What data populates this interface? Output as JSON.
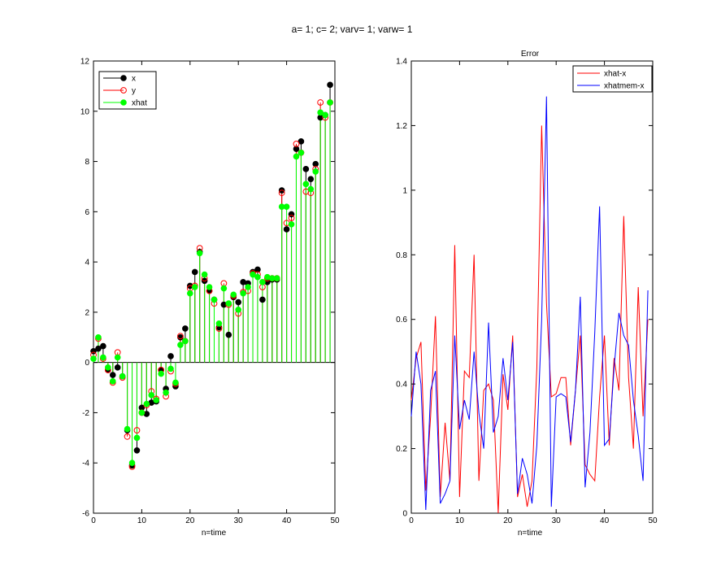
{
  "figure_title": "a= 1; c= 2; varv= 1; varw= 1",
  "chart_data": [
    {
      "type": "stem",
      "title": "",
      "xlabel": "n=time",
      "ylabel": "",
      "xlim": [
        0,
        50
      ],
      "ylim": [
        -6,
        12
      ],
      "xticks": [
        0,
        10,
        20,
        30,
        40,
        50
      ],
      "yticks": [
        -6,
        -4,
        -2,
        0,
        2,
        4,
        6,
        8,
        10,
        12
      ],
      "legend_position": "top-left",
      "x": [
        0,
        1,
        2,
        3,
        4,
        5,
        6,
        7,
        8,
        9,
        10,
        11,
        12,
        13,
        14,
        15,
        16,
        17,
        18,
        19,
        20,
        21,
        22,
        23,
        24,
        25,
        26,
        27,
        28,
        29,
        30,
        31,
        32,
        33,
        34,
        35,
        36,
        37,
        38,
        39,
        40,
        41,
        42,
        43,
        44,
        45,
        46,
        47,
        48,
        49
      ],
      "series": [
        {
          "name": "x",
          "color": "#000000",
          "marker": "filled-circle",
          "values": [
            0.45,
            0.55,
            0.65,
            -0.3,
            -0.5,
            -0.2,
            -0.55,
            -2.7,
            -4.1,
            -3.5,
            -1.8,
            -2.05,
            -1.6,
            -1.55,
            -0.3,
            -1.05,
            0.25,
            -0.95,
            1.0,
            1.35,
            3.05,
            3.6,
            4.4,
            3.25,
            2.85,
            2.5,
            1.4,
            2.3,
            1.1,
            2.6,
            2.4,
            3.2,
            3.15,
            3.6,
            3.7,
            2.5,
            3.2,
            3.3,
            3.3,
            6.85,
            5.3,
            5.9,
            8.5,
            8.8,
            7.7,
            7.3,
            7.9,
            9.75,
            9.85,
            11.05
          ]
        },
        {
          "name": "y",
          "color": "#ff0000",
          "marker": "open-circle",
          "values": [
            0.3,
            0.95,
            0.15,
            -0.3,
            -0.8,
            0.4,
            -0.6,
            -2.95,
            -4.15,
            -2.7,
            -2.0,
            -1.7,
            -1.15,
            -1.45,
            -0.3,
            -1.35,
            -0.35,
            -0.85,
            1.05,
            0.85,
            2.95,
            3.05,
            4.55,
            3.35,
            2.85,
            2.35,
            1.35,
            3.15,
            2.3,
            2.65,
            1.95,
            2.8,
            2.85,
            3.55,
            3.5,
            3.0,
            3.35,
            3.35,
            3.35,
            6.75,
            5.55,
            5.75,
            8.7,
            8.35,
            6.8,
            6.75,
            7.7,
            10.35,
            9.75,
            10.35
          ]
        },
        {
          "name": "xhat",
          "color": "#00ff00",
          "marker": "filled-circle",
          "stem": true,
          "values": [
            0.15,
            1.0,
            0.2,
            -0.2,
            -0.75,
            0.2,
            -0.55,
            -2.65,
            -4.0,
            -3.0,
            -2.0,
            -1.65,
            -1.3,
            -1.5,
            -0.45,
            -1.2,
            -0.25,
            -0.8,
            0.7,
            0.85,
            2.75,
            3.0,
            4.35,
            3.5,
            3.0,
            2.5,
            1.55,
            2.95,
            2.35,
            2.7,
            2.1,
            2.75,
            3.0,
            3.5,
            3.4,
            3.2,
            3.4,
            3.35,
            3.35,
            6.2,
            6.2,
            5.5,
            8.2,
            8.35,
            7.1,
            6.9,
            7.6,
            9.95,
            9.85,
            10.35
          ]
        }
      ]
    },
    {
      "type": "line",
      "title": "Error",
      "xlabel": "n=time",
      "ylabel": "",
      "xlim": [
        0,
        50
      ],
      "ylim": [
        0,
        1.4
      ],
      "xticks": [
        0,
        10,
        20,
        30,
        40,
        50
      ],
      "yticks": [
        0,
        0.2,
        0.4,
        0.6,
        0.8,
        1.0,
        1.2,
        1.4
      ],
      "ytick_labels": [
        "0",
        "0.2",
        "0.4",
        "0.6",
        "0.8",
        "1",
        "1.2",
        "1.4"
      ],
      "legend_position": "top-right",
      "x": [
        0,
        1,
        2,
        3,
        4,
        5,
        6,
        7,
        8,
        9,
        10,
        11,
        12,
        13,
        14,
        15,
        16,
        17,
        18,
        19,
        20,
        21,
        22,
        23,
        24,
        25,
        26,
        27,
        28,
        29,
        30,
        31,
        32,
        33,
        34,
        35,
        36,
        37,
        38,
        39,
        40,
        41,
        42,
        43,
        44,
        45,
        46,
        47,
        48,
        49
      ],
      "series": [
        {
          "name": "xhat-x",
          "color": "#ff0000",
          "values": [
            0.35,
            0.48,
            0.53,
            0.07,
            0.3,
            0.61,
            0.05,
            0.28,
            0.1,
            0.83,
            0.05,
            0.44,
            0.42,
            0.8,
            0.1,
            0.38,
            0.4,
            0.35,
            0.0,
            0.43,
            0.32,
            0.55,
            0.05,
            0.12,
            0.02,
            0.1,
            0.45,
            1.2,
            0.65,
            0.36,
            0.37,
            0.42,
            0.42,
            0.21,
            0.38,
            0.55,
            0.15,
            0.12,
            0.1,
            0.36,
            0.55,
            0.21,
            0.48,
            0.38,
            0.92,
            0.42,
            0.2,
            0.7,
            0.3,
            0.6
          ]
        },
        {
          "name": "xhatmem-x",
          "color": "#0000ff",
          "values": [
            0.3,
            0.5,
            0.4,
            0.01,
            0.38,
            0.44,
            0.03,
            0.06,
            0.1,
            0.55,
            0.26,
            0.35,
            0.29,
            0.5,
            0.31,
            0.2,
            0.59,
            0.25,
            0.3,
            0.48,
            0.35,
            0.53,
            0.06,
            0.17,
            0.12,
            0.03,
            0.21,
            0.6,
            1.29,
            0.02,
            0.36,
            0.37,
            0.36,
            0.22,
            0.38,
            0.67,
            0.08,
            0.25,
            0.56,
            0.95,
            0.21,
            0.23,
            0.45,
            0.62,
            0.55,
            0.52,
            0.35,
            0.24,
            0.1,
            0.69
          ]
        }
      ]
    }
  ]
}
